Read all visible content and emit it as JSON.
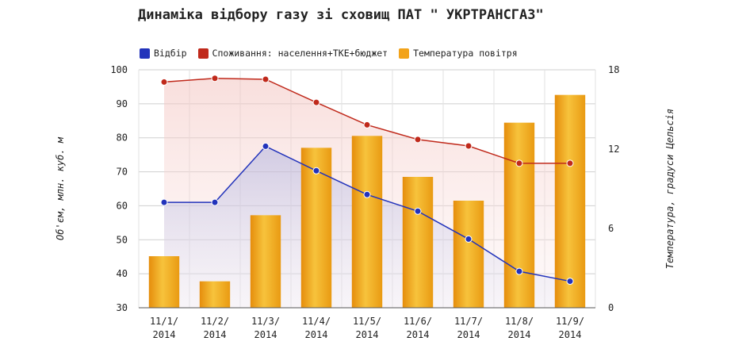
{
  "chart_data": {
    "type": "bar+line",
    "title": "Динаміка відбору газу зі сховищ ПАТ \" УКРТРАНСГАЗ\"",
    "categories": [
      "11/1/2014",
      "11/2/2014",
      "11/3/2014",
      "11/4/2014",
      "11/5/2014",
      "11/6/2014",
      "11/7/2014",
      "11/8/2014",
      "11/9/2014"
    ],
    "category_lines": [
      [
        "11/1/",
        "2014"
      ],
      [
        "11/2/",
        "2014"
      ],
      [
        "11/3/",
        "2014"
      ],
      [
        "11/4/",
        "2014"
      ],
      [
        "11/5/",
        "2014"
      ],
      [
        "11/6/",
        "2014"
      ],
      [
        "11/7/",
        "2014"
      ],
      [
        "11/8/",
        "2014"
      ],
      [
        "11/9/",
        "2014"
      ]
    ],
    "ylabel_left": "Об'єм, млн. куб. м",
    "ylabel_right": "Температура, градуси Цельсія",
    "ylim_left": [
      30,
      100
    ],
    "yticks_left": [
      30,
      40,
      50,
      60,
      70,
      80,
      90,
      100
    ],
    "ylim_right": [
      0,
      18
    ],
    "yticks_right": [
      0,
      6,
      12,
      18
    ],
    "grid": true,
    "legend_position": "top",
    "series": [
      {
        "name": "Відбір",
        "type": "line",
        "axis": "left",
        "color": "#2233bb",
        "values": [
          61,
          61,
          77.5,
          70.3,
          63.3,
          58.4,
          50.2,
          40.7,
          37.8
        ]
      },
      {
        "name": "Споживання: населення+ТКЕ+бюджет",
        "type": "line",
        "axis": "left",
        "color": "#c0291b",
        "values": [
          96.4,
          97.5,
          97.2,
          90.4,
          83.8,
          79.5,
          77.6,
          72.5,
          72.5
        ]
      },
      {
        "name": "Температура повітря",
        "type": "bar",
        "axis": "right",
        "color": "#f2a31a",
        "values": [
          3.9,
          2.0,
          7.0,
          12.1,
          13.0,
          9.9,
          8.1,
          14.0,
          16.1
        ]
      }
    ]
  }
}
